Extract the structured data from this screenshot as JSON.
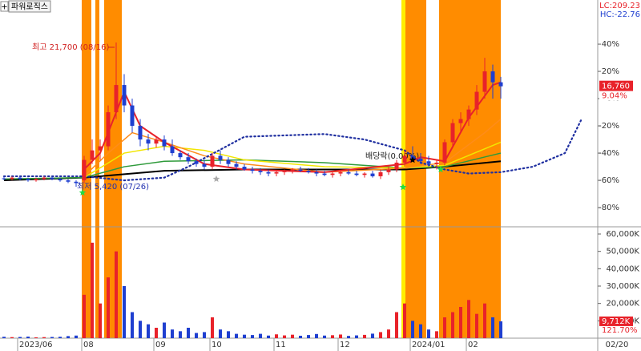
{
  "chart_data": {
    "type": "candlestick",
    "title": "파워로직스",
    "lc_label": "LC:209.23",
    "hc_label": "HC:-22.76",
    "categories": [
      null,
      null,
      "2023/06",
      null,
      null,
      null,
      null,
      null,
      null,
      null,
      "08",
      null,
      null,
      null,
      null,
      null,
      null,
      null,
      null,
      "09",
      null,
      null,
      null,
      null,
      null,
      null,
      "10",
      null,
      null,
      null,
      null,
      null,
      null,
      null,
      "11",
      null,
      null,
      null,
      null,
      null,
      null,
      null,
      "12",
      null,
      null,
      null,
      null,
      null,
      null,
      null,
      null,
      "2024/01",
      null,
      null,
      null,
      null,
      null,
      null,
      "02",
      null,
      null,
      null,
      null
    ],
    "x_end_label": "02/20",
    "open": [
      -58.5,
      -59,
      -58,
      -59,
      -60,
      -59,
      -58,
      -59,
      -60,
      -61,
      -60,
      -45,
      -38,
      -35,
      -10,
      10,
      -5,
      -20,
      -30,
      -33,
      -30,
      -35,
      -40,
      -43,
      -46,
      -48,
      -50,
      -42,
      -45,
      -48,
      -50,
      -52,
      -53,
      -54,
      -55,
      -54,
      -53,
      -52,
      -53,
      -54,
      -55,
      -56,
      -55,
      -54,
      -55,
      -56,
      -55,
      -57,
      -54,
      -52,
      -47,
      -42,
      -44,
      -46,
      -48,
      -47,
      -32,
      -18,
      -15,
      -8,
      5,
      20,
      12
    ],
    "high": [
      -57.5,
      -57,
      -57.5,
      -58,
      -58,
      -57,
      -57.5,
      -58,
      -59,
      -60,
      -42,
      -30,
      -30,
      -5,
      41.2,
      18,
      0,
      -15,
      -26,
      -28,
      -27,
      -30,
      -38,
      -40,
      -44,
      -45,
      -40,
      -38,
      -43,
      -46,
      -48,
      -50,
      -51,
      -52,
      -53,
      -52,
      -51,
      -50,
      -51,
      -52,
      -53,
      -54,
      -53,
      -52,
      -53,
      -54,
      -53,
      -52,
      -50,
      -45,
      -38,
      -35,
      -40,
      -42,
      -45,
      -30,
      -15,
      -10,
      -5,
      10,
      30,
      25,
      16
    ],
    "low": [
      -60,
      -60,
      -60,
      -61,
      -61,
      -60,
      -60,
      -61,
      -62,
      -64.7,
      -62,
      -48,
      -45,
      -38,
      -15,
      -10,
      -25,
      -35,
      -38,
      -36,
      -38,
      -42,
      -45,
      -48,
      -50,
      -52,
      -52,
      -48,
      -50,
      -52,
      -53,
      -55,
      -56,
      -57,
      -57,
      -56,
      -55,
      -54,
      -55,
      -57,
      -57,
      -58,
      -57,
      -56,
      -57,
      -58,
      -58,
      -59,
      -56,
      -54,
      -50,
      -46,
      -48,
      -50,
      -52,
      -49,
      -35,
      -25,
      -20,
      -12,
      0,
      0,
      0
    ],
    "close": [
      -59,
      -58,
      -59,
      -60,
      -59,
      -58,
      -59,
      -60,
      -61,
      -62,
      -45,
      -38,
      -35,
      -10,
      10,
      -5,
      -20,
      -30,
      -33,
      -30,
      -35,
      -40,
      -43,
      -46,
      -48,
      -50,
      -42,
      -45,
      -48,
      -50,
      -52,
      -53,
      -54,
      -55,
      -54,
      -53,
      -52,
      -53,
      -54,
      -55,
      -56,
      -55,
      -54,
      -55,
      -56,
      -55,
      -57,
      -54,
      -52,
      -47,
      -42,
      -44,
      -46,
      -48,
      -47,
      -32,
      -18,
      -15,
      -8,
      5,
      20,
      12,
      9.04
    ],
    "volume": [
      800,
      600,
      700,
      900,
      500,
      600,
      700,
      800,
      1200,
      1500,
      25000,
      55000,
      20000,
      35000,
      50000,
      30000,
      15000,
      10000,
      8000,
      6000,
      9000,
      5000,
      4000,
      6000,
      3000,
      3500,
      12000,
      5000,
      4000,
      2500,
      2000,
      1800,
      2500,
      1500,
      2200,
      1600,
      2000,
      1400,
      1800,
      2400,
      1500,
      1700,
      2100,
      1300,
      1600,
      1900,
      2600,
      3500,
      5000,
      15000,
      20000,
      10000,
      8000,
      5000,
      4000,
      12000,
      15000,
      18000,
      22000,
      14000,
      20000,
      12000,
      9712
    ],
    "up_color": "#e8222a",
    "down_color": "#1f3fd0",
    "ylim": [
      -93.5,
      72.4
    ],
    "yticks": [
      {
        "value": 40,
        "label": "40%"
      },
      {
        "value": 20,
        "label": "20%"
      },
      {
        "value": 0,
        "label": "0%"
      },
      {
        "value": -20,
        "label": "-20%"
      },
      {
        "value": -40,
        "label": "-40%"
      },
      {
        "value": -60,
        "label": "-60%"
      },
      {
        "value": -80,
        "label": "-80%"
      }
    ],
    "vlim": [
      0,
      63700
    ],
    "vticks": [
      {
        "value": 60000,
        "label": "60,000K"
      },
      {
        "value": 50000,
        "label": "50,000K"
      },
      {
        "value": 40000,
        "label": "40,000K"
      },
      {
        "value": 30000,
        "label": "30,000K"
      },
      {
        "value": 20000,
        "label": "20,000K"
      },
      {
        "value": 10000,
        "label": "10,000K"
      }
    ],
    "moving_averages": [
      {
        "color": "#000000",
        "width": 2,
        "x": [
          0,
          10,
          20,
          30,
          40,
          50,
          55,
          62
        ],
        "values": [
          -60,
          -58,
          -53,
          -52,
          -52,
          -52,
          -50,
          -46
        ]
      },
      {
        "color": "#2e9a3a",
        "width": 1.5,
        "x": [
          0,
          10,
          15,
          20,
          30,
          40,
          50,
          55,
          62
        ],
        "values": [
          -59,
          -58,
          -50,
          -46,
          -45,
          -47,
          -51,
          -50,
          -40
        ]
      },
      {
        "color": "#f2e600",
        "width": 1.5,
        "x": [
          10,
          15,
          20,
          25,
          30,
          40,
          50,
          55,
          62
        ],
        "values": [
          -58,
          -40,
          -35,
          -38,
          -45,
          -50,
          -51,
          -49,
          -32
        ]
      },
      {
        "color": "#ff8c1a",
        "width": 1.5,
        "x": [
          10,
          13,
          16,
          20,
          25,
          30,
          40,
          50,
          55,
          60,
          62
        ],
        "values": [
          -57,
          -40,
          -25,
          -32,
          -42,
          -48,
          -54,
          -51,
          -47,
          -25,
          -15
        ]
      },
      {
        "color": "#e8222a",
        "width": 2,
        "x": [
          10,
          12,
          14,
          15,
          17,
          20,
          25,
          30,
          40,
          50,
          52,
          55,
          58,
          61,
          62
        ],
        "values": [
          -52,
          -40,
          -10,
          5,
          -20,
          -32,
          -48,
          -52,
          -54,
          -48,
          -43,
          -46,
          -14,
          10,
          12
        ]
      }
    ],
    "sar": {
      "color": "#1f2fa0",
      "x": [
        0,
        10,
        15,
        20,
        23,
        30,
        40,
        45,
        50,
        52,
        55,
        58,
        62,
        66,
        70,
        72
      ],
      "values": [
        -57,
        -57,
        -60,
        -58,
        -50,
        -28,
        -26,
        -30,
        -38,
        -47,
        -52,
        -55,
        -54,
        -50,
        -40,
        -16
      ]
    },
    "bands": [
      {
        "from": 9.7,
        "to": 10.9,
        "color": "#ff8c00"
      },
      {
        "from": 11.4,
        "to": 11.9,
        "color": "#ff8c00"
      },
      {
        "from": 12.5,
        "to": 14.7,
        "color": "#ff8c00"
      },
      {
        "from": 49.6,
        "to": 50.1,
        "color": "#ffee00"
      },
      {
        "from": 50.1,
        "to": 52.7,
        "color": "#ff8c00"
      },
      {
        "from": 54.3,
        "to": 62.0,
        "color": "#ff8c00"
      }
    ],
    "markers": [
      {
        "x": 9.8,
        "value": -69,
        "color": "#22dd44"
      },
      {
        "x": 49.8,
        "value": -65,
        "color": "#22dd44"
      },
      {
        "x": 54.5,
        "value": -52,
        "color": "#22dd44"
      },
      {
        "x": 26.5,
        "value": -59,
        "color": "#aaaaaa"
      },
      {
        "x": 51,
        "value": -45,
        "color": "#000000"
      }
    ],
    "annotations": {
      "high": "최고 21,700 (08/16)",
      "low": "최저 5,420 (07/26)",
      "dividend": "배당락(0.00%)"
    },
    "last_price": {
      "value": 9.04,
      "label": "16,760",
      "change_label": "9.04%"
    },
    "last_volume": {
      "value": 9712,
      "label": "9,712K",
      "ratio_label": "121.70%"
    }
  }
}
